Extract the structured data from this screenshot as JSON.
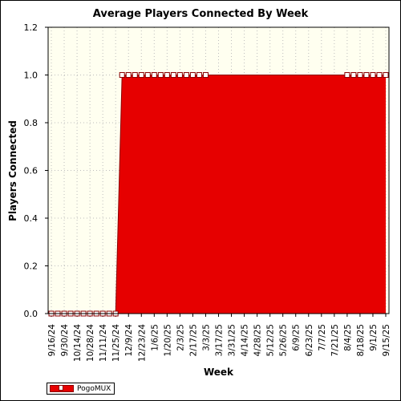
{
  "chart_data": {
    "type": "area",
    "title": "Average Players Connected By Week",
    "xlabel": "Week",
    "ylabel": "Players Connected",
    "ylim": [
      0,
      1.2
    ],
    "y_ticks": [
      "0.0",
      "0.2",
      "0.4",
      "0.6",
      "0.8",
      "1.0",
      "1.2"
    ],
    "x_tick_labels": [
      "9/16/24",
      "9/30/24",
      "10/14/24",
      "10/28/24",
      "11/11/24",
      "11/25/24",
      "12/9/24",
      "12/23/24",
      "1/6/25",
      "1/20/25",
      "2/3/25",
      "2/17/25",
      "3/3/25",
      "3/17/25",
      "3/31/25",
      "4/14/25",
      "4/28/25",
      "5/12/25",
      "5/26/25",
      "6/9/25",
      "6/23/25",
      "7/7/25",
      "7/21/25",
      "8/4/25",
      "8/18/25",
      "9/1/25",
      "9/15/25"
    ],
    "x": [
      "9/16/24",
      "9/23/24",
      "9/30/24",
      "10/7/24",
      "10/14/24",
      "10/21/24",
      "10/28/24",
      "11/4/24",
      "11/11/24",
      "11/18/24",
      "11/25/24",
      "12/2/24",
      "12/9/24",
      "12/16/24",
      "12/23/24",
      "12/30/24",
      "1/6/25",
      "1/13/25",
      "1/20/25",
      "1/27/25",
      "2/3/25",
      "2/10/25",
      "2/17/25",
      "2/24/25",
      "3/3/25",
      "3/10/25",
      "3/17/25",
      "3/24/25",
      "3/31/25",
      "4/7/25",
      "4/14/25",
      "4/21/25",
      "4/28/25",
      "5/5/25",
      "5/12/25",
      "5/19/25",
      "5/26/25",
      "6/2/25",
      "6/9/25",
      "6/16/25",
      "6/23/25",
      "6/30/25",
      "7/7/25",
      "7/14/25",
      "7/21/25",
      "7/28/25",
      "8/4/25",
      "8/11/25",
      "8/18/25",
      "8/25/25",
      "9/1/25",
      "9/8/25",
      "9/15/25"
    ],
    "series": [
      {
        "name": "PogoMUX",
        "color": "#e60000",
        "values": [
          0,
          0,
          0,
          0,
          0,
          0,
          0,
          0,
          0,
          0,
          0,
          1,
          1,
          1,
          1,
          1,
          1,
          1,
          1,
          1,
          1,
          1,
          1,
          1,
          1,
          1,
          1,
          1,
          1,
          1,
          1,
          1,
          1,
          1,
          1,
          1,
          1,
          1,
          1,
          1,
          1,
          1,
          1,
          1,
          1,
          1,
          1,
          1,
          1,
          1,
          1,
          1,
          1
        ],
        "markers": [
          true,
          true,
          true,
          true,
          true,
          true,
          true,
          true,
          true,
          true,
          true,
          true,
          true,
          true,
          true,
          true,
          true,
          true,
          true,
          true,
          true,
          true,
          true,
          true,
          true,
          false,
          false,
          false,
          false,
          false,
          false,
          false,
          false,
          false,
          false,
          false,
          false,
          false,
          false,
          false,
          false,
          false,
          false,
          false,
          false,
          false,
          true,
          true,
          true,
          true,
          true,
          true,
          true
        ]
      }
    ],
    "grid": true,
    "legend": "bottom-left",
    "plot_background": "#fffff0"
  }
}
